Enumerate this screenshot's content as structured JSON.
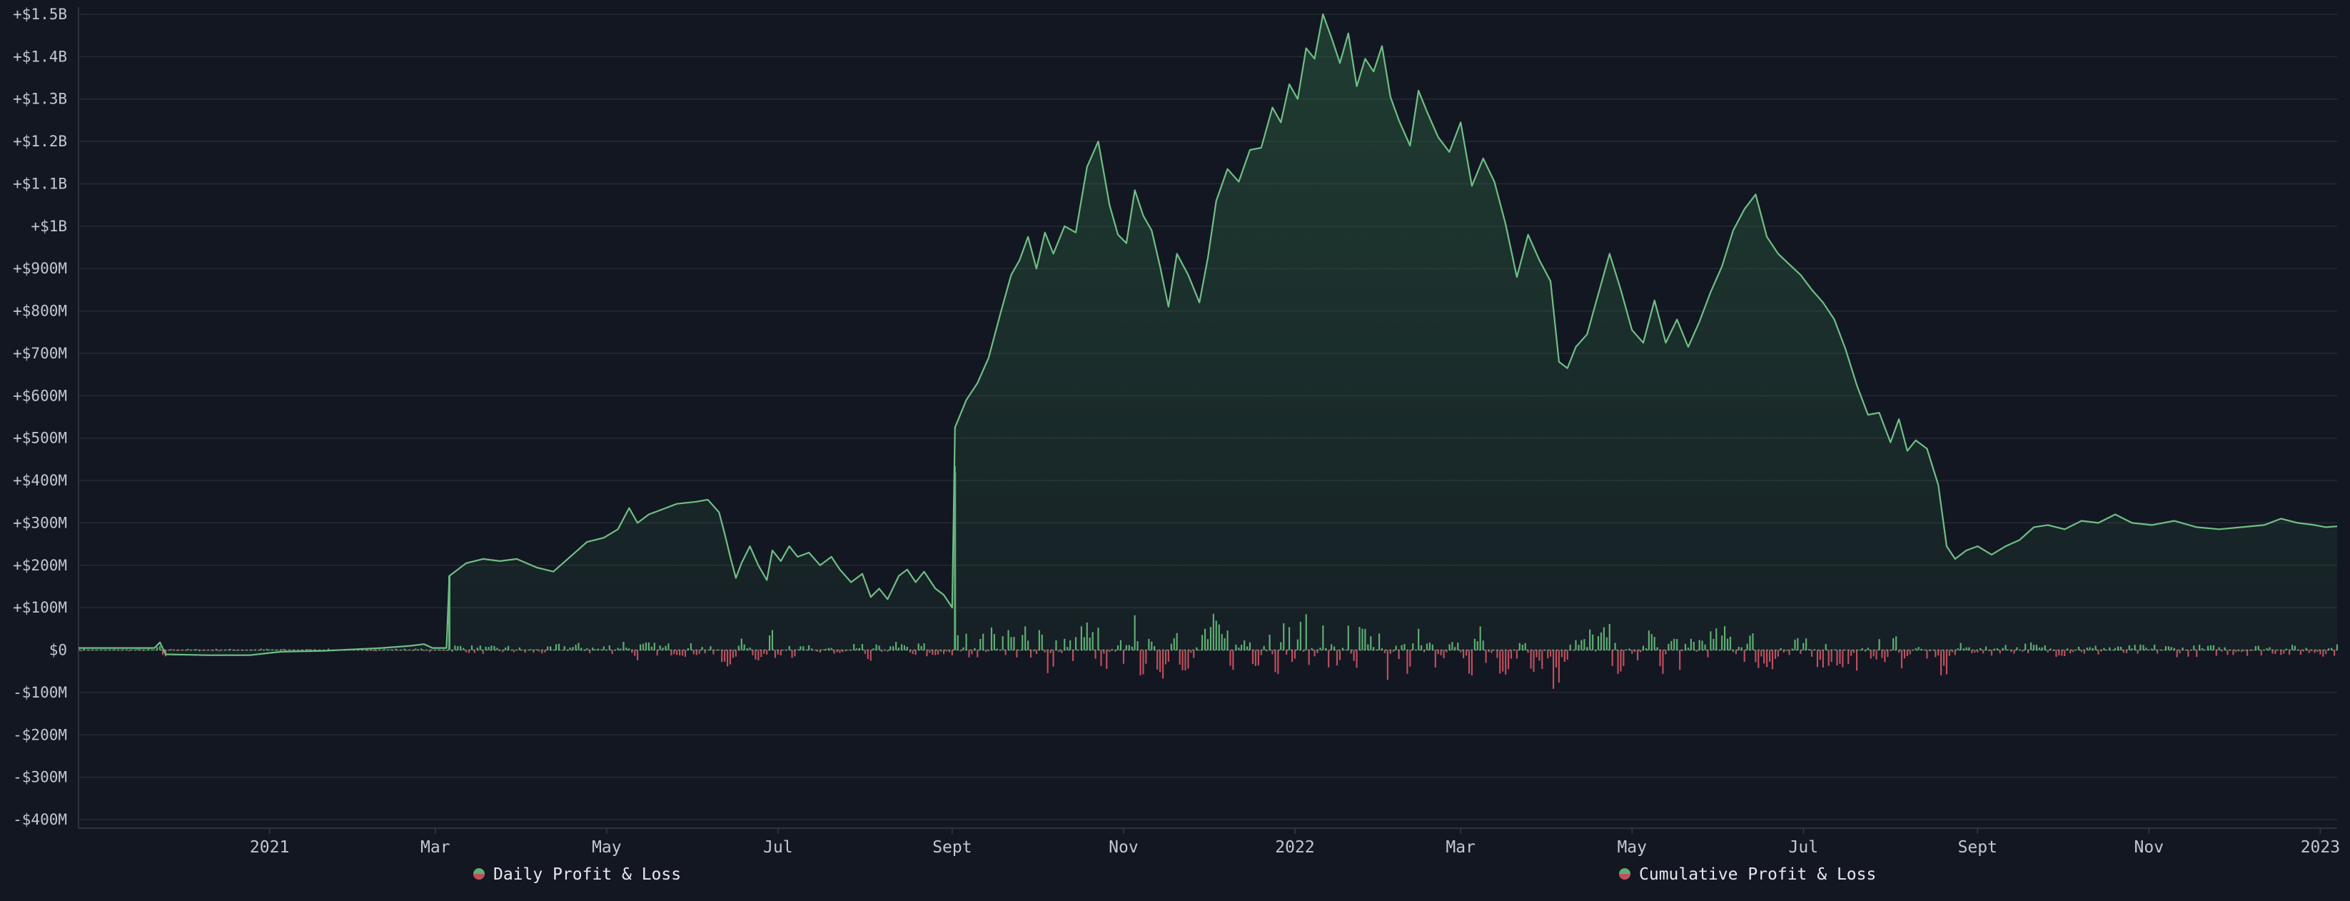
{
  "chart_data": {
    "type": "line",
    "title": "",
    "xlabel": "",
    "ylabel": "",
    "colors": {
      "background": "#131722",
      "grid": "#262a33",
      "cumulative": "#6fbf85",
      "profit_bar": "#5fae73",
      "loss_bar": "#c04f5d"
    },
    "ylim": [
      -400,
      1500
    ],
    "y_unit": "million USD",
    "y_ticks": [
      {
        "value": 1500,
        "label": "+$1.5B"
      },
      {
        "value": 1400,
        "label": "+$1.4B"
      },
      {
        "value": 1300,
        "label": "+$1.3B"
      },
      {
        "value": 1200,
        "label": "+$1.2B"
      },
      {
        "value": 1100,
        "label": "+$1.1B"
      },
      {
        "value": 1000,
        "label": "+$1B"
      },
      {
        "value": 900,
        "label": "+$900M"
      },
      {
        "value": 800,
        "label": "+$800M"
      },
      {
        "value": 700,
        "label": "+$700M"
      },
      {
        "value": 600,
        "label": "+$600M"
      },
      {
        "value": 500,
        "label": "+$500M"
      },
      {
        "value": 400,
        "label": "+$400M"
      },
      {
        "value": 300,
        "label": "+$300M"
      },
      {
        "value": 200,
        "label": "+$200M"
      },
      {
        "value": 100,
        "label": "+$100M"
      },
      {
        "value": 0,
        "label": "$0"
      },
      {
        "value": -100,
        "label": "-$100M"
      },
      {
        "value": -200,
        "label": "-$200M"
      },
      {
        "value": -300,
        "label": "-$300M"
      },
      {
        "value": -400,
        "label": "-$400M"
      }
    ],
    "xlim": [
      "2020-10-25",
      "2023-01-07"
    ],
    "x_ticks": [
      {
        "date": "2021-01-01",
        "label": "2021"
      },
      {
        "date": "2021-03-01",
        "label": "Mar"
      },
      {
        "date": "2021-05-01",
        "label": "May"
      },
      {
        "date": "2021-07-01",
        "label": "Jul"
      },
      {
        "date": "2021-09-01",
        "label": "Sept"
      },
      {
        "date": "2021-11-01",
        "label": "Nov"
      },
      {
        "date": "2022-01-01",
        "label": "2022"
      },
      {
        "date": "2022-03-01",
        "label": "Mar"
      },
      {
        "date": "2022-05-01",
        "label": "May"
      },
      {
        "date": "2022-07-01",
        "label": "Jul"
      },
      {
        "date": "2022-09-01",
        "label": "Sept"
      },
      {
        "date": "2022-11-01",
        "label": "Nov"
      },
      {
        "date": "2023-01-01",
        "label": "2023"
      }
    ],
    "legend": [
      {
        "label": "Daily Profit & Loss",
        "series": "daily"
      },
      {
        "label": "Cumulative Profit & Loss",
        "series": "cumulative"
      }
    ],
    "legend_position": "bottom",
    "series": [
      {
        "name": "Cumulative Profit & Loss",
        "type": "area",
        "points": [
          [
            "2020-10-25",
            5
          ],
          [
            "2020-11-10",
            5
          ],
          [
            "2020-11-21",
            5
          ],
          [
            "2020-11-23",
            18
          ],
          [
            "2020-11-25",
            -10
          ],
          [
            "2020-12-10",
            -12
          ],
          [
            "2020-12-25",
            -12
          ],
          [
            "2021-01-05",
            -4
          ],
          [
            "2021-01-20",
            -2
          ],
          [
            "2021-02-10",
            5
          ],
          [
            "2021-02-20",
            10
          ],
          [
            "2021-02-25",
            14
          ],
          [
            "2021-02-28",
            5
          ],
          [
            "2021-03-05",
            5
          ],
          [
            "2021-03-06",
            175
          ],
          [
            "2021-03-12",
            205
          ],
          [
            "2021-03-18",
            215
          ],
          [
            "2021-03-24",
            210
          ],
          [
            "2021-03-30",
            215
          ],
          [
            "2021-04-06",
            195
          ],
          [
            "2021-04-12",
            185
          ],
          [
            "2021-04-18",
            220
          ],
          [
            "2021-04-24",
            255
          ],
          [
            "2021-04-30",
            265
          ],
          [
            "2021-05-05",
            285
          ],
          [
            "2021-05-09",
            335
          ],
          [
            "2021-05-12",
            300
          ],
          [
            "2021-05-16",
            320
          ],
          [
            "2021-05-20",
            330
          ],
          [
            "2021-05-26",
            345
          ],
          [
            "2021-06-02",
            350
          ],
          [
            "2021-06-06",
            355
          ],
          [
            "2021-06-10",
            325
          ],
          [
            "2021-06-12",
            275
          ],
          [
            "2021-06-14",
            220
          ],
          [
            "2021-06-16",
            170
          ],
          [
            "2021-06-18",
            205
          ],
          [
            "2021-06-21",
            245
          ],
          [
            "2021-06-24",
            200
          ],
          [
            "2021-06-27",
            165
          ],
          [
            "2021-06-29",
            235
          ],
          [
            "2021-07-02",
            210
          ],
          [
            "2021-07-05",
            245
          ],
          [
            "2021-07-08",
            220
          ],
          [
            "2021-07-12",
            230
          ],
          [
            "2021-07-16",
            200
          ],
          [
            "2021-07-20",
            220
          ],
          [
            "2021-07-23",
            190
          ],
          [
            "2021-07-27",
            160
          ],
          [
            "2021-07-31",
            180
          ],
          [
            "2021-08-03",
            125
          ],
          [
            "2021-08-06",
            145
          ],
          [
            "2021-08-09",
            120
          ],
          [
            "2021-08-13",
            175
          ],
          [
            "2021-08-16",
            190
          ],
          [
            "2021-08-19",
            160
          ],
          [
            "2021-08-22",
            185
          ],
          [
            "2021-08-26",
            145
          ],
          [
            "2021-08-29",
            130
          ],
          [
            "2021-08-31",
            110
          ],
          [
            "2021-09-01",
            100
          ],
          [
            "2021-09-02",
            525
          ],
          [
            "2021-09-06",
            590
          ],
          [
            "2021-09-10",
            630
          ],
          [
            "2021-09-14",
            690
          ],
          [
            "2021-09-18",
            790
          ],
          [
            "2021-09-22",
            885
          ],
          [
            "2021-09-25",
            920
          ],
          [
            "2021-09-28",
            975
          ],
          [
            "2021-10-01",
            900
          ],
          [
            "2021-10-04",
            985
          ],
          [
            "2021-10-07",
            935
          ],
          [
            "2021-10-11",
            1000
          ],
          [
            "2021-10-15",
            985
          ],
          [
            "2021-10-19",
            1140
          ],
          [
            "2021-10-23",
            1200
          ],
          [
            "2021-10-27",
            1050
          ],
          [
            "2021-10-30",
            980
          ],
          [
            "2021-11-02",
            960
          ],
          [
            "2021-11-05",
            1085
          ],
          [
            "2021-11-08",
            1025
          ],
          [
            "2021-11-11",
            990
          ],
          [
            "2021-11-14",
            905
          ],
          [
            "2021-11-17",
            810
          ],
          [
            "2021-11-20",
            935
          ],
          [
            "2021-11-24",
            885
          ],
          [
            "2021-11-28",
            820
          ],
          [
            "2021-12-01",
            925
          ],
          [
            "2021-12-04",
            1060
          ],
          [
            "2021-12-08",
            1135
          ],
          [
            "2021-12-12",
            1105
          ],
          [
            "2021-12-16",
            1180
          ],
          [
            "2021-12-20",
            1185
          ],
          [
            "2021-12-24",
            1280
          ],
          [
            "2021-12-27",
            1245
          ],
          [
            "2021-12-30",
            1335
          ],
          [
            "2022-01-02",
            1300
          ],
          [
            "2022-01-05",
            1420
          ],
          [
            "2022-01-08",
            1395
          ],
          [
            "2022-01-11",
            1500
          ],
          [
            "2022-01-14",
            1445
          ],
          [
            "2022-01-17",
            1385
          ],
          [
            "2022-01-20",
            1455
          ],
          [
            "2022-01-23",
            1330
          ],
          [
            "2022-01-26",
            1395
          ],
          [
            "2022-01-29",
            1365
          ],
          [
            "2022-02-01",
            1425
          ],
          [
            "2022-02-04",
            1305
          ],
          [
            "2022-02-07",
            1250
          ],
          [
            "2022-02-11",
            1190
          ],
          [
            "2022-02-14",
            1320
          ],
          [
            "2022-02-17",
            1270
          ],
          [
            "2022-02-21",
            1210
          ],
          [
            "2022-02-25",
            1175
          ],
          [
            "2022-03-01",
            1245
          ],
          [
            "2022-03-05",
            1095
          ],
          [
            "2022-03-09",
            1160
          ],
          [
            "2022-03-13",
            1105
          ],
          [
            "2022-03-17",
            1005
          ],
          [
            "2022-03-21",
            880
          ],
          [
            "2022-03-25",
            980
          ],
          [
            "2022-03-29",
            920
          ],
          [
            "2022-04-02",
            870
          ],
          [
            "2022-04-05",
            680
          ],
          [
            "2022-04-08",
            665
          ],
          [
            "2022-04-11",
            715
          ],
          [
            "2022-04-15",
            745
          ],
          [
            "2022-04-19",
            840
          ],
          [
            "2022-04-23",
            935
          ],
          [
            "2022-04-27",
            850
          ],
          [
            "2022-05-01",
            755
          ],
          [
            "2022-05-05",
            725
          ],
          [
            "2022-05-09",
            825
          ],
          [
            "2022-05-13",
            725
          ],
          [
            "2022-05-17",
            780
          ],
          [
            "2022-05-21",
            715
          ],
          [
            "2022-05-25",
            775
          ],
          [
            "2022-05-29",
            845
          ],
          [
            "2022-06-02",
            905
          ],
          [
            "2022-06-06",
            990
          ],
          [
            "2022-06-10",
            1040
          ],
          [
            "2022-06-14",
            1075
          ],
          [
            "2022-06-18",
            975
          ],
          [
            "2022-06-22",
            935
          ],
          [
            "2022-06-26",
            910
          ],
          [
            "2022-06-30",
            885
          ],
          [
            "2022-07-04",
            850
          ],
          [
            "2022-07-08",
            820
          ],
          [
            "2022-07-12",
            780
          ],
          [
            "2022-07-16",
            710
          ],
          [
            "2022-07-20",
            625
          ],
          [
            "2022-07-24",
            555
          ],
          [
            "2022-07-28",
            560
          ],
          [
            "2022-08-01",
            490
          ],
          [
            "2022-08-04",
            545
          ],
          [
            "2022-08-07",
            470
          ],
          [
            "2022-08-10",
            495
          ],
          [
            "2022-08-14",
            475
          ],
          [
            "2022-08-18",
            390
          ],
          [
            "2022-08-21",
            245
          ],
          [
            "2022-08-24",
            215
          ],
          [
            "2022-08-28",
            235
          ],
          [
            "2022-09-01",
            245
          ],
          [
            "2022-09-06",
            225
          ],
          [
            "2022-09-11",
            245
          ],
          [
            "2022-09-16",
            260
          ],
          [
            "2022-09-21",
            290
          ],
          [
            "2022-09-26",
            295
          ],
          [
            "2022-10-02",
            285
          ],
          [
            "2022-10-08",
            305
          ],
          [
            "2022-10-14",
            300
          ],
          [
            "2022-10-20",
            320
          ],
          [
            "2022-10-26",
            300
          ],
          [
            "2022-11-02",
            295
          ],
          [
            "2022-11-10",
            305
          ],
          [
            "2022-11-18",
            290
          ],
          [
            "2022-11-26",
            285
          ],
          [
            "2022-12-04",
            290
          ],
          [
            "2022-12-12",
            295
          ],
          [
            "2022-12-18",
            310
          ],
          [
            "2022-12-24",
            300
          ],
          [
            "2022-12-30",
            295
          ],
          [
            "2023-01-03",
            290
          ],
          [
            "2023-01-07",
            292
          ]
        ]
      },
      {
        "name": "Daily Profit & Loss",
        "type": "bar",
        "values": [
          [
            "2021-03-06",
            175
          ],
          [
            "2021-09-02",
            420
          ]
        ]
      }
    ]
  }
}
